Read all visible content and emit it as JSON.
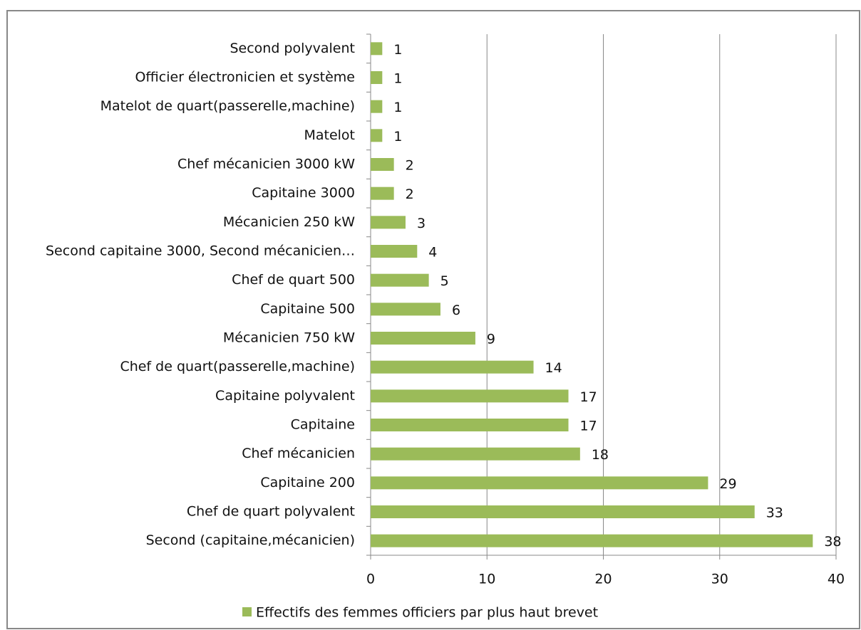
{
  "chart_data": {
    "type": "bar",
    "orientation": "horizontal",
    "categories": [
      "Second polyvalent",
      "Officier électronicien et système",
      "Matelot de quart(passerelle,machine)",
      "Matelot",
      "Chef mécanicien 3000 kW",
      "Capitaine 3000",
      "Mécanicien 250 kW",
      "Second capitaine 3000, Second mécanicien…",
      "Chef de quart 500",
      "Capitaine 500",
      "Mécanicien 750 kW",
      "Chef de quart(passerelle,machine)",
      "Capitaine polyvalent",
      "Capitaine",
      "Chef mécanicien",
      "Capitaine 200",
      "Chef de quart polyvalent",
      "Second (capitaine,mécanicien)"
    ],
    "series": [
      {
        "name": "Effectifs des femmes officiers par plus haut brevet",
        "color": "#9bbb59",
        "values": [
          1,
          1,
          1,
          1,
          2,
          2,
          3,
          4,
          5,
          6,
          9,
          14,
          17,
          17,
          18,
          29,
          33,
          38
        ]
      }
    ],
    "xlim": [
      0,
      40
    ],
    "xticks": [
      0,
      10,
      20,
      30,
      40
    ],
    "grid": true,
    "legend": "bottom"
  }
}
